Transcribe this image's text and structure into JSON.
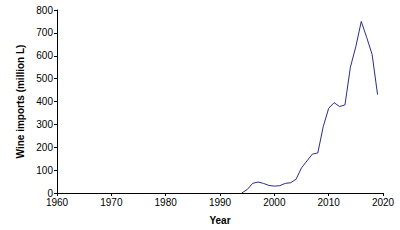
{
  "chart_data": {
    "type": "line",
    "x_label": "Year",
    "y_label": "Wine imports (million L)",
    "x": [
      1994,
      1995,
      1996,
      1997,
      1998,
      1999,
      2000,
      2001,
      2002,
      2003,
      2004,
      2005,
      2006,
      2007,
      2008,
      2009,
      2010,
      2011,
      2012,
      2013,
      2014,
      2015,
      2016,
      2017,
      2018,
      2019
    ],
    "values": [
      0,
      15,
      42,
      48,
      42,
      33,
      30,
      32,
      42,
      45,
      60,
      110,
      140,
      170,
      175,
      290,
      370,
      395,
      378,
      385,
      550,
      640,
      750,
      680,
      605,
      430
    ],
    "color": "#2b2b8f",
    "xlim": [
      1960,
      2020
    ],
    "xticks": [
      1960,
      1970,
      1980,
      1990,
      2000,
      2010,
      2020
    ],
    "ylim": [
      0,
      800
    ],
    "yticks": [
      0,
      100,
      200,
      300,
      400,
      500,
      600,
      700,
      800
    ],
    "grid": false
  }
}
